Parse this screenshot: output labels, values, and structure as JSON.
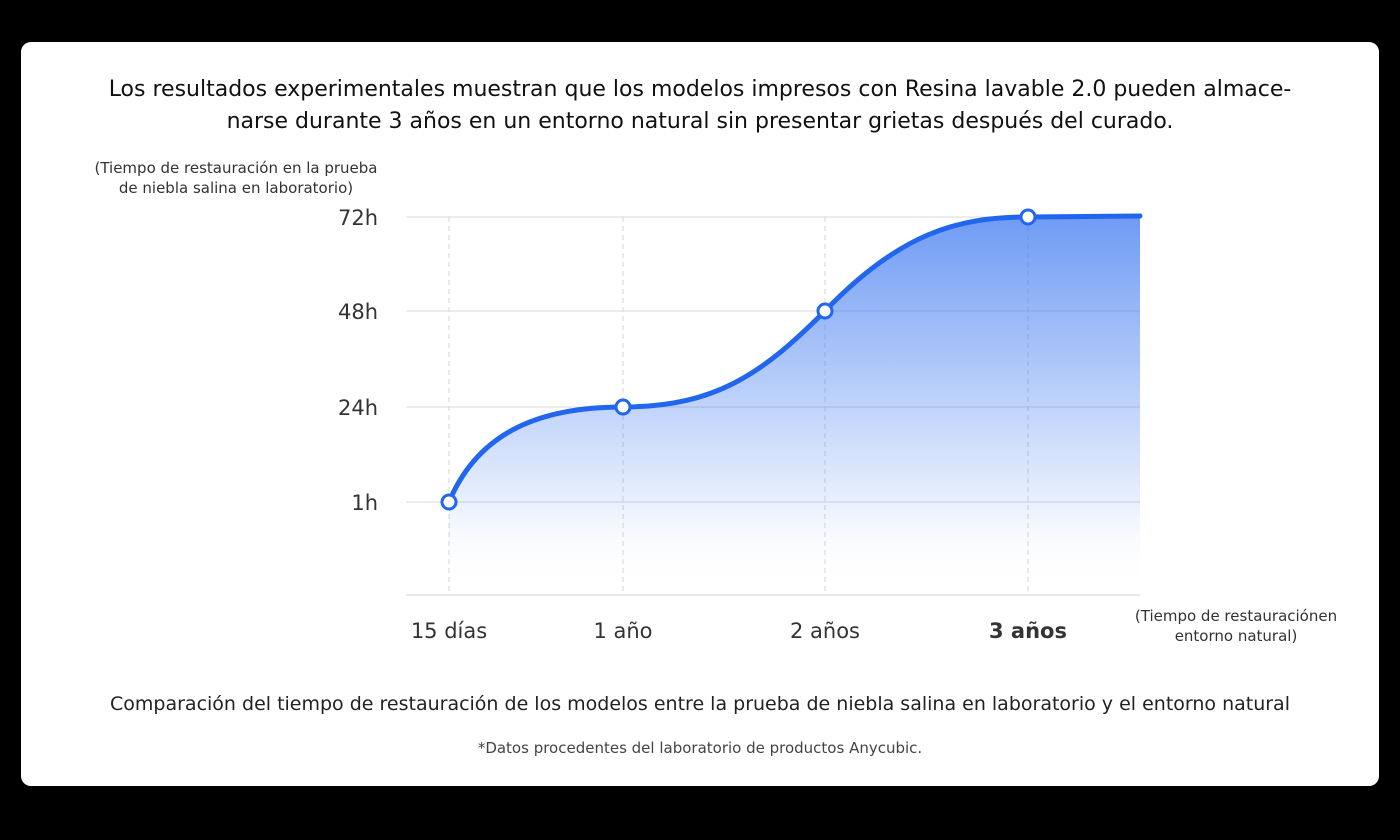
{
  "header": {
    "title_line1": "Los resultados experimentales muestran que los modelos impresos con Resina lavable 2.0 pueden almace-",
    "title_line2": "narse durante 3 años en un entorno natural sin presentar grietas después del curado."
  },
  "chart_data": {
    "type": "area",
    "ylabel": "(Tiempo de restauración en la prueba de niebla salina en laboratorio)",
    "ylabel_line1": "(Tiempo de restauración en la prueba",
    "ylabel_line2": "de niebla salina en laboratorio)",
    "xlabel_line1": "(Tiempo de restauraciónen",
    "xlabel_line2": "entorno natural)",
    "categories": [
      "15 días",
      "1 año",
      "2 años",
      "3 años"
    ],
    "y_ticks": [
      "1h",
      "24h",
      "48h",
      "72h"
    ],
    "values": [
      1,
      24,
      48,
      72
    ],
    "highlight_category": "3 años",
    "grid": true,
    "colors": {
      "line": "#2266ee",
      "highlight": "#2f74f5",
      "fill": "#2b6cf0"
    }
  },
  "caption": "Comparación del tiempo de restauración de los modelos entre la prueba de niebla salina en laboratorio y el entorno natural",
  "footnote": "*Datos procedentes del laboratorio de productos Anycubic."
}
